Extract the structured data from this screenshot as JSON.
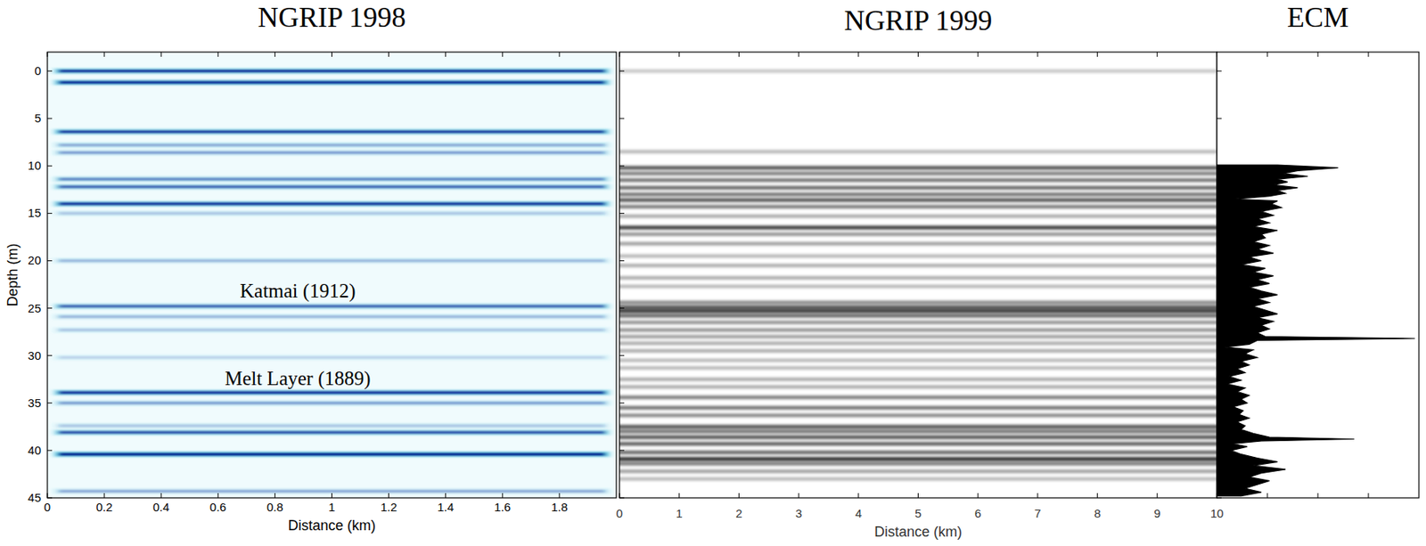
{
  "chart_data": [
    {
      "type": "radargram",
      "title": "NGRIP 1998",
      "xlabel": "Distance (km)",
      "ylabel": "Depth (m)",
      "xlim": [
        0,
        2
      ],
      "ylim": [
        -2,
        45
      ],
      "xticks": [
        0,
        0.2,
        0.4,
        0.6,
        0.8,
        1,
        1.2,
        1.4,
        1.6,
        1.8
      ],
      "yticks": [
        0,
        5,
        10,
        15,
        20,
        25,
        30,
        35,
        40,
        45
      ],
      "color": "#00008b",
      "layers": {
        "depth": [
          0,
          1.2,
          6.4,
          7.8,
          8.6,
          11.4,
          12.2,
          14.0,
          15.0,
          20.0,
          24.8,
          25.9,
          27.3,
          30.2,
          33.9,
          35.0,
          37.4,
          38.1,
          40.4,
          44.3
        ],
        "strength": [
          0.85,
          0.9,
          0.8,
          0.3,
          0.35,
          0.45,
          0.6,
          0.85,
          0.2,
          0.25,
          0.6,
          0.25,
          0.2,
          0.15,
          0.85,
          0.35,
          0.2,
          0.7,
          1.0,
          0.3
        ]
      },
      "annotations": [
        {
          "text": "Katmai (1912)",
          "x": 0.88,
          "y": 23.2
        },
        {
          "text": "Melt Layer (1889)",
          "x": 0.88,
          "y": 32.4
        }
      ]
    },
    {
      "type": "radargram",
      "title": "NGRIP 1999",
      "xlabel": "Distance (km)",
      "xlim": [
        0,
        10
      ],
      "ylim": [
        -2,
        45
      ],
      "xticks": [
        0,
        1,
        2,
        3,
        4,
        5,
        6,
        7,
        8,
        9,
        10
      ],
      "yticks": [
        0,
        5,
        10,
        15,
        20,
        25,
        30,
        35,
        40,
        45
      ],
      "tick_labels": "x",
      "color": "#000000",
      "layers": {
        "depth": [
          0,
          8.5,
          10.2,
          10.8,
          11.5,
          12.3,
          13.0,
          13.6,
          14.3,
          15.3,
          16.5,
          17.2,
          18.2,
          19.5,
          20.5,
          21.8,
          22.7,
          24.4,
          24.9,
          25.3,
          25.8,
          26.5,
          27.3,
          28.0,
          28.7,
          29.5,
          30.5,
          31.3,
          32.5,
          33.3,
          34.4,
          35.5,
          36.3,
          37.5,
          38.0,
          38.6,
          39.3,
          40.2,
          40.9,
          41.4,
          42.2,
          43.0
        ],
        "strength": [
          0.2,
          0.25,
          0.7,
          0.5,
          0.55,
          0.6,
          0.55,
          0.7,
          0.5,
          0.3,
          0.85,
          0.4,
          0.35,
          0.25,
          0.3,
          0.3,
          0.25,
          0.45,
          0.7,
          0.85,
          0.6,
          0.4,
          0.4,
          0.35,
          0.3,
          0.3,
          0.25,
          0.25,
          0.3,
          0.3,
          0.5,
          0.55,
          0.45,
          0.7,
          0.55,
          0.7,
          0.65,
          0.6,
          0.95,
          0.5,
          0.35,
          0.25
        ]
      }
    },
    {
      "type": "profile",
      "title": "ECM",
      "xlim": [
        0,
        1
      ],
      "ylim": [
        -2,
        45
      ],
      "xticks": [
        0.25,
        0.5,
        0.75
      ],
      "yticks": [
        0,
        5,
        10,
        15,
        20,
        25,
        30,
        35,
        40,
        45
      ],
      "tick_labels": false,
      "color": "#000000",
      "depth": [
        9.9,
        10.2,
        10.5,
        10.8,
        11.1,
        11.4,
        11.7,
        12.0,
        12.3,
        12.6,
        12.9,
        13.2,
        13.5,
        13.7,
        14.0,
        14.4,
        14.8,
        15.2,
        15.6,
        16.0,
        16.4,
        16.8,
        17.2,
        17.6,
        18.0,
        18.4,
        18.8,
        19.2,
        19.6,
        20.0,
        20.4,
        20.8,
        21.2,
        21.6,
        22.0,
        22.4,
        22.8,
        23.2,
        23.6,
        24.0,
        24.4,
        24.8,
        25.2,
        25.6,
        26.0,
        26.4,
        26.8,
        27.2,
        27.6,
        28.0,
        28.2,
        28.4,
        28.8,
        29.1,
        29.4,
        29.8,
        30.2,
        30.6,
        31.0,
        31.4,
        31.8,
        32.2,
        32.6,
        33.0,
        33.4,
        33.8,
        34.2,
        34.6,
        35.0,
        35.4,
        35.8,
        36.2,
        36.6,
        37.0,
        37.4,
        37.8,
        38.2,
        38.6,
        38.8,
        39.0,
        39.3,
        39.6,
        40.0,
        40.4,
        40.8,
        41.2,
        41.6,
        42.0,
        42.4,
        42.8,
        43.2,
        43.6,
        44.0,
        44.4,
        44.8
      ],
      "values": [
        0.3,
        0.6,
        0.4,
        0.33,
        0.45,
        0.3,
        0.35,
        0.28,
        0.4,
        0.3,
        0.34,
        0.26,
        0.08,
        0.3,
        0.27,
        0.32,
        0.22,
        0.28,
        0.2,
        0.26,
        0.18,
        0.3,
        0.22,
        0.24,
        0.18,
        0.26,
        0.2,
        0.28,
        0.16,
        0.22,
        0.12,
        0.24,
        0.18,
        0.28,
        0.2,
        0.26,
        0.16,
        0.22,
        0.3,
        0.2,
        0.26,
        0.18,
        0.24,
        0.3,
        0.2,
        0.28,
        0.22,
        0.26,
        0.2,
        0.24,
        0.98,
        0.2,
        0.16,
        0.04,
        0.18,
        0.14,
        0.2,
        0.12,
        0.16,
        0.1,
        0.14,
        0.06,
        0.12,
        0.05,
        0.14,
        0.1,
        0.16,
        0.12,
        0.15,
        0.08,
        0.13,
        0.11,
        0.16,
        0.1,
        0.14,
        0.12,
        0.18,
        0.26,
        0.68,
        0.22,
        0.08,
        0.15,
        0.07,
        0.12,
        0.2,
        0.3,
        0.18,
        0.34,
        0.22,
        0.16,
        0.26,
        0.2,
        0.14,
        0.22,
        0.12
      ]
    }
  ]
}
